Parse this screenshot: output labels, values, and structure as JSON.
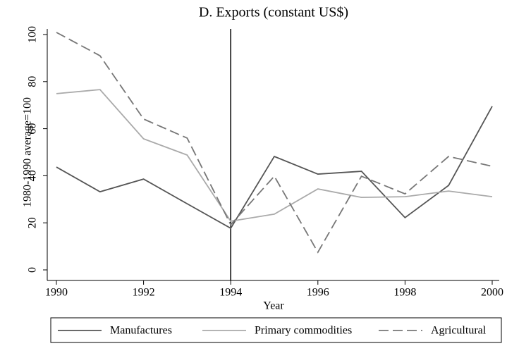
{
  "chart_data": {
    "type": "line",
    "title": "D. Exports (constant US$)",
    "x_label": "Year",
    "y_label": "1980-1990 average=100",
    "x": [
      1990,
      1991,
      1992,
      1993,
      1994,
      1995,
      1996,
      1997,
      1998,
      1999,
      2000
    ],
    "series": [
      {
        "name": "Manufactures",
        "color": "#555555",
        "dash": "none",
        "values": [
          43.7,
          33.2,
          38.6,
          28.1,
          17.7,
          48.2,
          40.7,
          41.9,
          22.2,
          35.9,
          69.5
        ]
      },
      {
        "name": "Primary commodities",
        "color": "#aaaaaa",
        "dash": "none",
        "values": [
          74.9,
          76.6,
          55.7,
          48.8,
          20.7,
          23.7,
          34.4,
          30.8,
          31.1,
          33.5,
          31.1
        ]
      },
      {
        "name": "Agricultural",
        "color": "#777777",
        "dash": "14 6",
        "values": [
          100.9,
          91.0,
          64.1,
          56.0,
          19.2,
          39.8,
          7.5,
          39.8,
          32.3,
          48.2,
          44.0
        ]
      }
    ],
    "vline": 1994,
    "xlim": [
      1990,
      2000
    ],
    "xticks": [
      1990,
      1992,
      1994,
      1996,
      1998,
      2000
    ],
    "ylim": [
      0,
      100
    ],
    "yticks": [
      0,
      20,
      40,
      60,
      80,
      100
    ],
    "legend": "bottom",
    "grid": false
  }
}
